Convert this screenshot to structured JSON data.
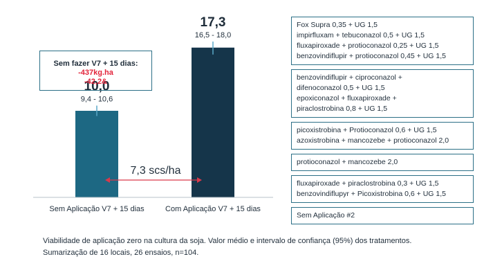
{
  "chart_data": {
    "type": "bar",
    "categories": [
      "Sem Aplicação V7 + 15 dias",
      "Com Aplicação V7 + 15 dias"
    ],
    "values": [
      10.0,
      17.3
    ],
    "value_labels": [
      "10,0",
      "17,3"
    ],
    "ranges": [
      [
        9.4,
        10.6
      ],
      [
        16.5,
        18.0
      ]
    ],
    "range_labels": [
      "9,4 - 10,6",
      "16,5 - 18,0"
    ],
    "colors": [
      "#1d6883",
      "#15354a"
    ],
    "difference_label": "7,3 scs/ha",
    "ylim": [
      0,
      20
    ],
    "grid": false,
    "title": "",
    "xlabel": "",
    "ylabel": ""
  },
  "callout": {
    "title": "Sem fazer V7 + 15 dias:",
    "lines": [
      "-437kg.ha",
      "-42,2&"
    ]
  },
  "legend_groups": [
    [
      "Fox Supra 0,35 + UG 1,5",
      "impirfluxam + tebuconazol 0,5 + UG 1,5",
      "fluxapiroxade + protioconazol 0,25 + UG 1,5",
      "benzovindiflupir + protioconazol 0,45 + UG 1,5"
    ],
    [
      "benzovindiflupir + ciproconazol +",
      "difenoconazol 0,5 + UG 1,5",
      "epoxiconazol + fluxapiroxade  +",
      "piraclostrobina 0,8 + UG 1,5"
    ],
    [
      "picoxistrobina  + Protioconazol 0,6 + UG 1,5",
      "azoxistrobina + mancozebe + protioconazol 2,0"
    ],
    [
      "protioconazol + mancozebe 2,0"
    ],
    [
      "fluxapiroxade  + piraclostrobina 0,3 + UG 1,5",
      "benzovindiflupyr + Picoxistrobina  0,6 + UG 1,5"
    ],
    [
      "Sem Aplicação #2"
    ]
  ],
  "caption": [
    "Viabilidade de aplicação zero na cultura da soja. Valor médio e intervalo de confiança (95%) dos tratamentos.",
    "Sumarização de 16 locais, 26 ensaios, n=104."
  ]
}
